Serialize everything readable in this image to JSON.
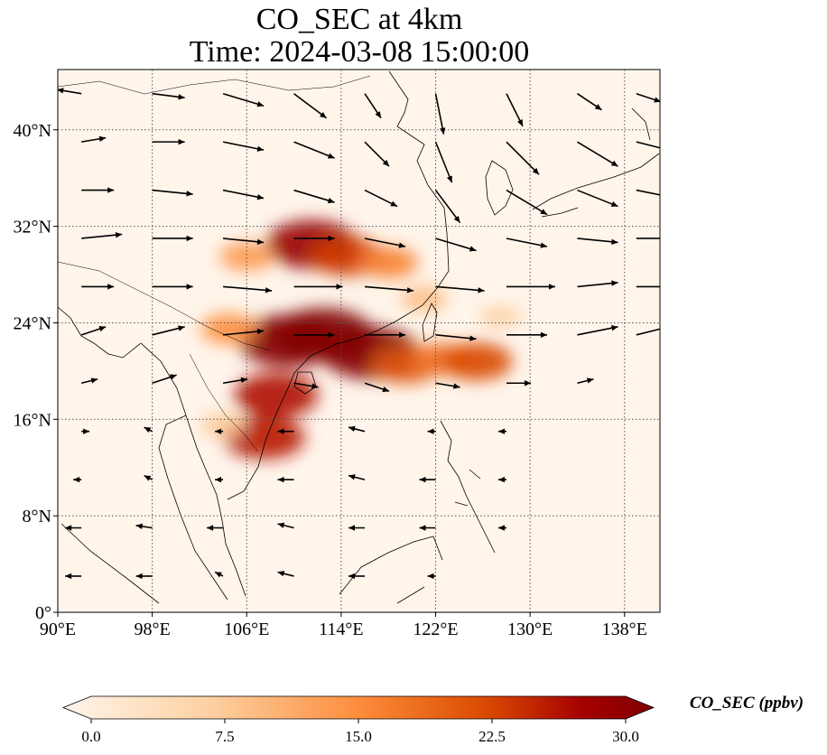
{
  "title": {
    "line1": "CO_SEC at 4km",
    "line2": "Time: 2024-03-08 15:00:00"
  },
  "map": {
    "lon_range": [
      90,
      141
    ],
    "lat_range": [
      0,
      45
    ],
    "lon_ticks": [
      {
        "value": 90,
        "label": "90°E"
      },
      {
        "value": 98,
        "label": "98°E"
      },
      {
        "value": 106,
        "label": "106°E"
      },
      {
        "value": 114,
        "label": "114°E"
      },
      {
        "value": 122,
        "label": "122°E"
      },
      {
        "value": 130,
        "label": "130°E"
      },
      {
        "value": 138,
        "label": "138°E"
      }
    ],
    "lat_ticks": [
      {
        "value": 0,
        "label": "0°"
      },
      {
        "value": 8,
        "label": "8°N"
      },
      {
        "value": 16,
        "label": "16°N"
      },
      {
        "value": 24,
        "label": "24°N"
      },
      {
        "value": 32,
        "label": "32°N"
      },
      {
        "value": 40,
        "label": "40°N"
      }
    ],
    "gridlines": true,
    "background_color": "#fff5eb",
    "plumes": [
      {
        "lon": 112.5,
        "lat": 23.0,
        "value": 30
      },
      {
        "lon": 109.5,
        "lat": 22.5,
        "value": 29
      },
      {
        "lon": 116.5,
        "lat": 21.5,
        "value": 29
      },
      {
        "lon": 111.5,
        "lat": 30.5,
        "value": 26
      },
      {
        "lon": 114.5,
        "lat": 29.5,
        "value": 19
      },
      {
        "lon": 118.0,
        "lat": 29.0,
        "value": 13
      },
      {
        "lon": 106.0,
        "lat": 29.5,
        "value": 11
      },
      {
        "lon": 119.5,
        "lat": 20.5,
        "value": 17
      },
      {
        "lon": 122.5,
        "lat": 21.0,
        "value": 14
      },
      {
        "lon": 125.5,
        "lat": 20.8,
        "value": 18
      },
      {
        "lon": 108.5,
        "lat": 18.0,
        "value": 23
      },
      {
        "lon": 107.5,
        "lat": 14.5,
        "value": 22
      },
      {
        "lon": 104.5,
        "lat": 23.5,
        "value": 12
      },
      {
        "lon": 121.0,
        "lat": 26.0,
        "value": 8
      },
      {
        "lon": 127.5,
        "lat": 24.5,
        "value": 6
      },
      {
        "lon": 104.0,
        "lat": 15.5,
        "value": 7
      }
    ],
    "wind_vectors": [
      {
        "lon": 92,
        "lat": 43,
        "u": -3,
        "v": 0.5
      },
      {
        "lon": 98,
        "lat": 43,
        "u": 4,
        "v": -0.5
      },
      {
        "lon": 104,
        "lat": 43,
        "u": 5,
        "v": -1.5
      },
      {
        "lon": 110,
        "lat": 43,
        "u": 4,
        "v": -3
      },
      {
        "lon": 116,
        "lat": 43,
        "u": 2,
        "v": -3
      },
      {
        "lon": 122,
        "lat": 43,
        "u": 1,
        "v": -5
      },
      {
        "lon": 128,
        "lat": 43,
        "u": 2,
        "v": -4
      },
      {
        "lon": 134,
        "lat": 43,
        "u": 3,
        "v": -2
      },
      {
        "lon": 139,
        "lat": 43,
        "u": 3,
        "v": -1
      },
      {
        "lon": 92,
        "lat": 39,
        "u": 3,
        "v": 0.5
      },
      {
        "lon": 98,
        "lat": 39,
        "u": 4,
        "v": 0
      },
      {
        "lon": 104,
        "lat": 39,
        "u": 5,
        "v": -1
      },
      {
        "lon": 110,
        "lat": 39,
        "u": 5,
        "v": -2
      },
      {
        "lon": 116,
        "lat": 39,
        "u": 3,
        "v": -3
      },
      {
        "lon": 122,
        "lat": 39,
        "u": 2,
        "v": -5
      },
      {
        "lon": 128,
        "lat": 39,
        "u": 4,
        "v": -4
      },
      {
        "lon": 134,
        "lat": 39,
        "u": 5,
        "v": -3
      },
      {
        "lon": 139,
        "lat": 39,
        "u": 4,
        "v": -1
      },
      {
        "lon": 92,
        "lat": 35,
        "u": 4,
        "v": 0
      },
      {
        "lon": 98,
        "lat": 35,
        "u": 5,
        "v": -0.5
      },
      {
        "lon": 104,
        "lat": 35,
        "u": 5,
        "v": -1
      },
      {
        "lon": 110,
        "lat": 35,
        "u": 5,
        "v": -1.5
      },
      {
        "lon": 116,
        "lat": 35,
        "u": 4,
        "v": -2
      },
      {
        "lon": 122,
        "lat": 35,
        "u": 3,
        "v": -4
      },
      {
        "lon": 128,
        "lat": 35,
        "u": 5,
        "v": -3
      },
      {
        "lon": 134,
        "lat": 35,
        "u": 5,
        "v": -2
      },
      {
        "lon": 139,
        "lat": 35,
        "u": 5,
        "v": -1
      },
      {
        "lon": 92,
        "lat": 31,
        "u": 5,
        "v": 0.5
      },
      {
        "lon": 98,
        "lat": 31,
        "u": 5,
        "v": 0
      },
      {
        "lon": 104,
        "lat": 31,
        "u": 5,
        "v": -0.5
      },
      {
        "lon": 110,
        "lat": 31,
        "u": 5,
        "v": 0
      },
      {
        "lon": 116,
        "lat": 31,
        "u": 5,
        "v": -1
      },
      {
        "lon": 122,
        "lat": 31,
        "u": 5,
        "v": -1.5
      },
      {
        "lon": 128,
        "lat": 31,
        "u": 5,
        "v": -1
      },
      {
        "lon": 134,
        "lat": 31,
        "u": 5,
        "v": -0.5
      },
      {
        "lon": 139,
        "lat": 31,
        "u": 4,
        "v": 0
      },
      {
        "lon": 92,
        "lat": 27,
        "u": 4,
        "v": 0
      },
      {
        "lon": 98,
        "lat": 27,
        "u": 5,
        "v": 0
      },
      {
        "lon": 104,
        "lat": 27,
        "u": 6,
        "v": -0.5
      },
      {
        "lon": 110,
        "lat": 27,
        "u": 6,
        "v": 0
      },
      {
        "lon": 116,
        "lat": 27,
        "u": 6,
        "v": -0.5
      },
      {
        "lon": 122,
        "lat": 27,
        "u": 6,
        "v": -0.5
      },
      {
        "lon": 128,
        "lat": 27,
        "u": 6,
        "v": 0
      },
      {
        "lon": 134,
        "lat": 27,
        "u": 5,
        "v": 0.5
      },
      {
        "lon": 139,
        "lat": 27,
        "u": 4,
        "v": 0
      },
      {
        "lon": 92,
        "lat": 23,
        "u": 3,
        "v": 1
      },
      {
        "lon": 98,
        "lat": 23,
        "u": 4,
        "v": 1
      },
      {
        "lon": 104,
        "lat": 23,
        "u": 5,
        "v": 0.5
      },
      {
        "lon": 110,
        "lat": 23,
        "u": 5,
        "v": 0
      },
      {
        "lon": 116,
        "lat": 23,
        "u": 5,
        "v": 0
      },
      {
        "lon": 122,
        "lat": 23,
        "u": 5,
        "v": -0.5
      },
      {
        "lon": 128,
        "lat": 23,
        "u": 5,
        "v": 0
      },
      {
        "lon": 134,
        "lat": 23,
        "u": 5,
        "v": 1
      },
      {
        "lon": 139,
        "lat": 23,
        "u": 4,
        "v": 1
      },
      {
        "lon": 92,
        "lat": 19,
        "u": 2,
        "v": 0.5
      },
      {
        "lon": 98,
        "lat": 19,
        "u": 3,
        "v": 1
      },
      {
        "lon": 104,
        "lat": 19,
        "u": 3,
        "v": 0.5
      },
      {
        "lon": 110,
        "lat": 19,
        "u": 3,
        "v": -0.5
      },
      {
        "lon": 116,
        "lat": 19,
        "u": 3,
        "v": -1
      },
      {
        "lon": 122,
        "lat": 19,
        "u": 3,
        "v": -0.5
      },
      {
        "lon": 128,
        "lat": 19,
        "u": 3,
        "v": 0
      },
      {
        "lon": 134,
        "lat": 19,
        "u": 2,
        "v": 0.5
      },
      {
        "lon": 92,
        "lat": 15,
        "u": 1,
        "v": 0
      },
      {
        "lon": 98,
        "lat": 15,
        "u": -1,
        "v": 0.5
      },
      {
        "lon": 104,
        "lat": 15,
        "u": -1,
        "v": 0
      },
      {
        "lon": 110,
        "lat": 15,
        "u": -2,
        "v": 0
      },
      {
        "lon": 116,
        "lat": 15,
        "u": -2,
        "v": 0.5
      },
      {
        "lon": 122,
        "lat": 15,
        "u": -1,
        "v": 0
      },
      {
        "lon": 128,
        "lat": 15,
        "u": -1,
        "v": 0
      },
      {
        "lon": 92,
        "lat": 11,
        "u": -1,
        "v": 0
      },
      {
        "lon": 98,
        "lat": 11,
        "u": -1,
        "v": 0.5
      },
      {
        "lon": 104,
        "lat": 11,
        "u": -1,
        "v": 0
      },
      {
        "lon": 110,
        "lat": 11,
        "u": -2,
        "v": 0
      },
      {
        "lon": 116,
        "lat": 11,
        "u": -2,
        "v": 0.5
      },
      {
        "lon": 122,
        "lat": 11,
        "u": -2,
        "v": 0
      },
      {
        "lon": 128,
        "lat": 11,
        "u": -1,
        "v": 0
      },
      {
        "lon": 92,
        "lat": 7,
        "u": -2,
        "v": 0
      },
      {
        "lon": 98,
        "lat": 7,
        "u": -2,
        "v": 0.3
      },
      {
        "lon": 104,
        "lat": 7,
        "u": -2,
        "v": 0
      },
      {
        "lon": 110,
        "lat": 7,
        "u": -2,
        "v": 0.5
      },
      {
        "lon": 116,
        "lat": 7,
        "u": -2,
        "v": 0
      },
      {
        "lon": 122,
        "lat": 7,
        "u": -2,
        "v": 0
      },
      {
        "lon": 128,
        "lat": 7,
        "u": -1,
        "v": 0
      },
      {
        "lon": 92,
        "lat": 3,
        "u": -2,
        "v": 0
      },
      {
        "lon": 98,
        "lat": 3,
        "u": -2,
        "v": 0
      },
      {
        "lon": 104,
        "lat": 3,
        "u": -1,
        "v": 0.5
      },
      {
        "lon": 110,
        "lat": 3,
        "u": -2,
        "v": 0.5
      },
      {
        "lon": 116,
        "lat": 3,
        "u": -2,
        "v": 0
      },
      {
        "lon": 122,
        "lat": 3,
        "u": -1,
        "v": 0
      }
    ]
  },
  "colorbar": {
    "label": "CO_SEC (ppbv)",
    "ticks": [
      {
        "value": 0,
        "label": "0.0"
      },
      {
        "value": 7.5,
        "label": "7.5"
      },
      {
        "value": 15,
        "label": "15.0"
      },
      {
        "value": 22.5,
        "label": "22.5"
      },
      {
        "value": 30,
        "label": "30.0"
      }
    ],
    "range": [
      0,
      30
    ],
    "colors": [
      "#fff5eb",
      "#fdd0a2",
      "#fd8d3c",
      "#d94801",
      "#a50000",
      "#7f0000"
    ],
    "extend": "both"
  }
}
